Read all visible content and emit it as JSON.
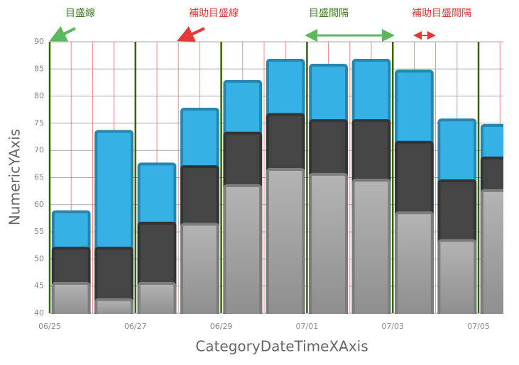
{
  "chart_data": {
    "type": "bar",
    "categories": [
      "06/25",
      null,
      "06/27",
      null,
      "06/29",
      null,
      "07/01",
      null,
      "07/03",
      null,
      "07/05"
    ],
    "series": [
      {
        "color": "#35b1e6",
        "values": [
          58.7,
          73.5,
          67.5,
          77.6,
          82.7,
          86.6,
          85.7,
          86.6,
          84.6,
          75.6,
          74.6
        ]
      },
      {
        "color": "#454545",
        "values": [
          52,
          52,
          56.6,
          67,
          73.2,
          76.6,
          75.5,
          75.5,
          71.5,
          64.4,
          68.6
        ]
      },
      {
        "color": "#a6a6a6",
        "values": [
          45.5,
          42.5,
          45.5,
          56.4,
          63.5,
          66.5,
          65.6,
          64.5,
          58.5,
          53.4,
          62.6
        ]
      }
    ],
    "ylim": [
      40,
      90
    ],
    "yticks": [
      40,
      45,
      50,
      55,
      60,
      65,
      70,
      75,
      80,
      85,
      90
    ],
    "y_label": "NumericYAxis",
    "x_label": "CategoryDateTimeXAxis",
    "grid": true,
    "major_grid_color": "#336600",
    "minor_grid_color": "#f07070",
    "annotations": [
      "目盛線",
      "補助目盛線",
      "目盛間隔",
      "補助目盛間隔"
    ]
  }
}
